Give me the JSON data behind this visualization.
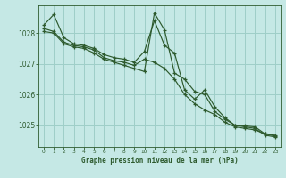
{
  "background_color": "#c5e8e5",
  "grid_color": "#9ecec8",
  "line_color": "#2d5a2d",
  "title": "Graphe pression niveau de la mer (hPa)",
  "ylabel_ticks": [
    1025,
    1026,
    1027,
    1028
  ],
  "xlim": [
    -0.5,
    23.5
  ],
  "ylim": [
    1024.3,
    1028.9
  ],
  "line1": {
    "x": [
      0,
      1,
      2,
      3,
      4,
      5,
      6,
      7,
      8,
      9,
      10,
      11,
      12,
      13,
      14,
      15,
      16,
      17,
      18,
      19,
      20,
      21,
      22,
      23
    ],
    "y": [
      1028.25,
      1028.6,
      1027.85,
      1027.65,
      1027.6,
      1027.5,
      1027.3,
      1027.2,
      1027.15,
      1027.05,
      1027.4,
      1028.4,
      1027.6,
      1027.35,
      1026.15,
      1025.85,
      1026.15,
      1025.6,
      1025.25,
      1025.0,
      1024.98,
      1024.95,
      1024.72,
      1024.68
    ]
  },
  "line2": {
    "x": [
      0,
      1,
      2,
      3,
      4,
      5,
      6,
      7,
      8,
      9,
      10,
      11,
      12,
      13,
      14,
      15,
      16,
      17,
      18,
      19,
      20,
      21,
      22,
      23
    ],
    "y": [
      1028.15,
      1028.05,
      1027.7,
      1027.6,
      1027.55,
      1027.45,
      1027.2,
      1027.1,
      1027.05,
      1026.95,
      1027.15,
      1027.05,
      1026.85,
      1026.5,
      1026.0,
      1025.7,
      1025.5,
      1025.35,
      1025.1,
      1024.95,
      1024.9,
      1024.85,
      1024.72,
      1024.65
    ]
  },
  "line3": {
    "x": [
      0,
      1,
      2,
      3,
      4,
      5,
      6,
      7,
      8,
      9,
      10,
      11,
      12,
      13,
      14,
      15,
      16,
      17,
      18,
      19,
      20,
      21,
      22,
      23
    ],
    "y": [
      1028.05,
      1028.0,
      1027.65,
      1027.55,
      1027.5,
      1027.35,
      1027.15,
      1027.05,
      1026.95,
      1026.85,
      1026.75,
      1028.65,
      1028.1,
      1026.7,
      1026.5,
      1026.1,
      1026.0,
      1025.45,
      1025.2,
      1025.0,
      1024.95,
      1024.9,
      1024.68,
      1024.62
    ]
  }
}
